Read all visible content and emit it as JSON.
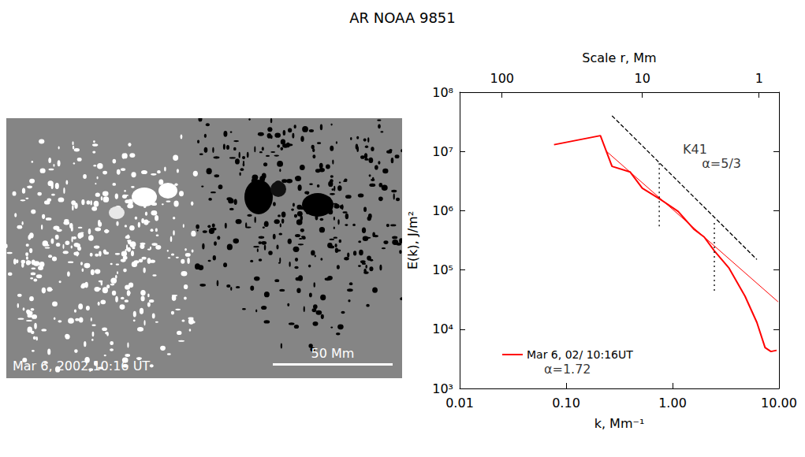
{
  "chart_data": {
    "type": "line",
    "title": "AR NOAA 9851",
    "log": true,
    "grid": false,
    "legend": "lower left",
    "x_label": "k, Mm⁻¹",
    "x2_label": "Scale r, Mm",
    "y_label": "E(k), J/m²",
    "xlim": [
      0.01,
      10
    ],
    "xticks": [
      {
        "value": 0.01,
        "label": "0.01"
      },
      {
        "value": 0.1,
        "label": "0.10"
      },
      {
        "value": 1,
        "label": "1.00"
      },
      {
        "value": 10,
        "label": "10.00"
      }
    ],
    "x2lim": [
      0.01,
      10
    ],
    "x2ticks": [
      {
        "value": 0.025,
        "label": "100"
      },
      {
        "value": 0.52,
        "label": "10"
      },
      {
        "value": 6.5,
        "label": "1"
      }
    ],
    "ylim": [
      1000,
      100000000
    ],
    "yticks": [
      {
        "value": 1000,
        "label": "10³"
      },
      {
        "value": 10000,
        "label": "10⁴"
      },
      {
        "value": 100000,
        "label": "10⁵"
      },
      {
        "value": 1000000,
        "label": "10⁶"
      },
      {
        "value": 10000000,
        "label": "10⁷"
      },
      {
        "value": 100000000,
        "label": "10⁸"
      }
    ],
    "series": [
      {
        "name": "Mar 6, 02/ 10:16UT",
        "color": "#ff0000",
        "line_style": "solid",
        "x": [
          0.077,
          0.21,
          0.27,
          0.4,
          0.52,
          0.75,
          1.13,
          1.58,
          1.98,
          2.47,
          3.4,
          4.8,
          6.2,
          7.4,
          8.4,
          9.5
        ],
        "values": [
          13000000,
          18500000,
          5600000,
          4500000,
          2400000,
          1600000,
          970000,
          490000,
          360000,
          210000,
          107000,
          36000,
          13000,
          4900,
          4200,
          4400
        ]
      },
      {
        "color": "#ff0000",
        "line_style": "thin",
        "x": [
          0.24,
          9.8
        ],
        "values": [
          10000000,
          29000
        ]
      },
      {
        "color": "#000000",
        "line_style": "dashed",
        "x": [
          0.27,
          6.2
        ],
        "values": [
          40000000,
          150000
        ]
      },
      {
        "color": "#000000",
        "line_style": "dotted",
        "x": [
          0.75,
          0.75
        ],
        "values": [
          6300000,
          490000
        ]
      },
      {
        "color": "#000000",
        "line_style": "dotted",
        "x": [
          2.47,
          2.47
        ],
        "values": [
          620000,
          40000
        ]
      }
    ],
    "annotations": [
      {
        "text": "K41",
        "x": 1.25,
        "y": 11000000
      },
      {
        "text": "α=5/3",
        "x": 1.89,
        "y": 6300000
      },
      {
        "text": "α=1.72",
        "x": 0.062,
        "y": 2100
      }
    ]
  },
  "image": {
    "caption": "Mar 6, 2002,10:16 UT",
    "scale_bar": "50 Mm"
  }
}
